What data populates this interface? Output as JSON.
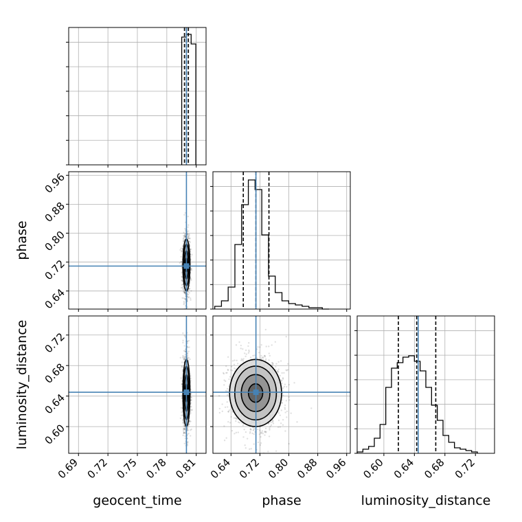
{
  "chart_data": {
    "type": "corner",
    "parameters": [
      "geocent_time",
      "phase",
      "luminosity_distance"
    ],
    "axis_labels": {
      "geocent_time": "geocent_time",
      "phase": "phase",
      "luminosity_distance": "luminosity_distance"
    },
    "ranges": {
      "geocent_time": [
        0.68,
        0.82
      ],
      "phase": [
        0.59,
        0.97
      ],
      "luminosity_distance": [
        0.565,
        0.745
      ]
    },
    "ticks": {
      "geocent_time": [
        "0.69",
        "0.72",
        "0.75",
        "0.78",
        "0.81"
      ],
      "phase": [
        "0.64",
        "0.72",
        "0.80",
        "0.88",
        "0.96"
      ],
      "luminosity_distance": [
        "0.60",
        "0.64",
        "0.68",
        "0.72"
      ]
    },
    "truths": {
      "geocent_time": 0.8,
      "phase": 0.709,
      "luminosity_distance": 0.645
    },
    "quantiles": {
      "geocent_time": [
        0.798,
        0.8,
        0.802
      ],
      "phase": [
        0.674,
        0.709,
        0.745
      ],
      "luminosity_distance": [
        0.619,
        0.643,
        0.668
      ]
    },
    "histograms": {
      "geocent_time": {
        "edges": [
          0.7952,
          0.8,
          0.8048,
          0.8096
        ],
        "heights": [
          0.93,
          0.95,
          0.88
        ]
      },
      "phase": {
        "edges": [
          0.595,
          0.6136,
          0.6322,
          0.6508,
          0.6694,
          0.688,
          0.7066,
          0.7252,
          0.7438,
          0.7624,
          0.781,
          0.7996,
          0.8182,
          0.8368,
          0.8554,
          0.874,
          0.8926,
          0.9112
        ],
        "heights": [
          0.02,
          0.06,
          0.16,
          0.47,
          0.76,
          0.94,
          0.87,
          0.54,
          0.24,
          0.12,
          0.06,
          0.04,
          0.03,
          0.02,
          0.01,
          0.01,
          0.0
        ]
      },
      "luminosity_distance": {
        "edges": [
          0.565,
          0.5725,
          0.58,
          0.5875,
          0.595,
          0.6025,
          0.61,
          0.6175,
          0.625,
          0.6325,
          0.64,
          0.6475,
          0.655,
          0.6625,
          0.67,
          0.6775,
          0.685,
          0.6925,
          0.7,
          0.7075,
          0.715,
          0.7225
        ],
        "heights": [
          0.01,
          0.03,
          0.05,
          0.11,
          0.21,
          0.48,
          0.62,
          0.66,
          0.7,
          0.71,
          0.67,
          0.6,
          0.48,
          0.35,
          0.24,
          0.13,
          0.08,
          0.04,
          0.03,
          0.02,
          0.01
        ]
      }
    },
    "samples_2d": {
      "geocent_time_phase": {
        "x_mean": 0.8,
        "x_std": 0.0018,
        "y_mean": 0.712,
        "y_std": 0.036
      },
      "geocent_time_luminosity_distance": {
        "x_mean": 0.8,
        "x_std": 0.0018,
        "y_mean": 0.644,
        "y_std": 0.022
      },
      "phase_luminosity_distance": {
        "x_mean": 0.708,
        "x_std": 0.036,
        "y_mean": 0.644,
        "y_std": 0.022
      }
    },
    "grid": true,
    "truth_color": "#4682b4",
    "quantile_style": "dashed black"
  }
}
